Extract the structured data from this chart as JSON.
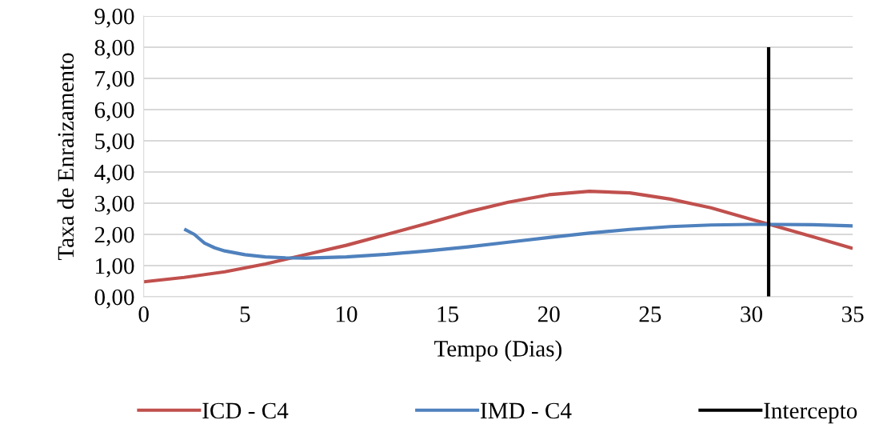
{
  "chart_data": {
    "type": "line",
    "xlabel": "Tempo (Dias)",
    "ylabel": "Taxa de Enraizamento",
    "xlim": [
      0,
      35
    ],
    "xticks": [
      0,
      5,
      10,
      15,
      20,
      25,
      30,
      35
    ],
    "ylim": [
      0,
      9
    ],
    "yticks": [
      {
        "value": 0,
        "label": "0,00"
      },
      {
        "value": 1,
        "label": "1,00"
      },
      {
        "value": 2,
        "label": "2,00"
      },
      {
        "value": 3,
        "label": "3,00"
      },
      {
        "value": 4,
        "label": "4,00"
      },
      {
        "value": 5,
        "label": "5,00"
      },
      {
        "value": 6,
        "label": "6,00"
      },
      {
        "value": 7,
        "label": "7,00"
      },
      {
        "value": 8,
        "label": "8,00"
      },
      {
        "value": 9,
        "label": "9,00"
      }
    ],
    "grid": "y",
    "legend": "bottom",
    "marker": "none",
    "line_style": "solid",
    "series": [
      {
        "name": "ICD - C4",
        "color": "#c0504d",
        "x": [
          0,
          2,
          4,
          6,
          8,
          10,
          12,
          14,
          16,
          18,
          20,
          22,
          24,
          26,
          28,
          30,
          31,
          33,
          35
        ],
        "values": [
          0.48,
          0.62,
          0.8,
          1.05,
          1.35,
          1.65,
          2.0,
          2.35,
          2.72,
          3.03,
          3.27,
          3.38,
          3.33,
          3.13,
          2.85,
          2.48,
          2.3,
          1.93,
          1.55
        ]
      },
      {
        "name": "IMD - C4",
        "color": "#4f81bd",
        "x": [
          2,
          2.5,
          3,
          3.5,
          4,
          5,
          6,
          7,
          8,
          10,
          12,
          14,
          16,
          18,
          20,
          22,
          24,
          26,
          28,
          30,
          31,
          33,
          35
        ],
        "values": [
          2.17,
          2.0,
          1.72,
          1.57,
          1.47,
          1.35,
          1.28,
          1.25,
          1.24,
          1.28,
          1.36,
          1.47,
          1.6,
          1.75,
          1.9,
          2.04,
          2.16,
          2.25,
          2.3,
          2.32,
          2.32,
          2.31,
          2.27
        ]
      },
      {
        "name": "Intercepto",
        "color": "#000000",
        "x": [
          30.85,
          30.85
        ],
        "values": [
          0,
          8
        ]
      }
    ]
  }
}
